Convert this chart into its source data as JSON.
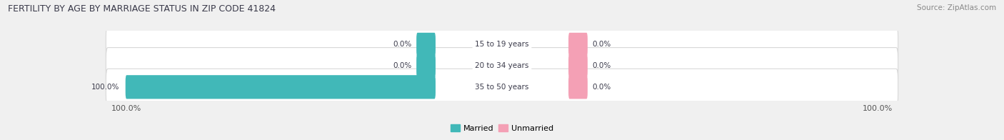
{
  "title": "FERTILITY BY AGE BY MARRIAGE STATUS IN ZIP CODE 41824",
  "source": "Source: ZipAtlas.com",
  "categories": [
    "15 to 19 years",
    "20 to 34 years",
    "35 to 50 years"
  ],
  "married_values": [
    0.0,
    0.0,
    100.0
  ],
  "unmarried_values": [
    0.0,
    0.0,
    0.0
  ],
  "married_color": "#41b8b8",
  "unmarried_color": "#f4a0b5",
  "row_bg_color": "#ffffff",
  "row_border_color": "#d8d8d8",
  "fig_bg_color": "#f0f0f0",
  "title_color": "#3a3a4a",
  "value_label_color": "#3a3a4a",
  "axis_label_color": "#555555",
  "source_color": "#888888",
  "center_label_bg": "#ffffff",
  "center_label_color": "#3a3a4a",
  "figsize": [
    14.06,
    1.96
  ],
  "dpi": 100,
  "max_val": 100,
  "zero_bar_width": 4.5
}
